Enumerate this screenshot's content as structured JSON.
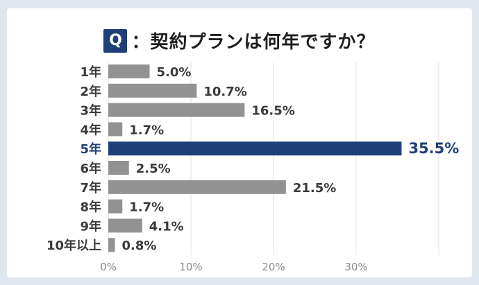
{
  "title": {
    "badge": "Q",
    "text": "：契約プランは何年ですか？"
  },
  "colors": {
    "bar": "#929292",
    "highlight": "#1f3f78",
    "label": "#3a3a3a",
    "highlight_label": "#1f3f78",
    "grid": "#e2e2e2",
    "tick": "#8a8a8a"
  },
  "chart_data": {
    "type": "bar",
    "orientation": "horizontal",
    "categories": [
      "1年",
      "2年",
      "3年",
      "4年",
      "5年",
      "6年",
      "7年",
      "8年",
      "9年",
      "10年以上"
    ],
    "values": [
      5.0,
      10.7,
      16.5,
      1.7,
      35.5,
      2.5,
      21.5,
      1.7,
      4.1,
      0.8
    ],
    "value_labels": [
      "5.0%",
      "10.7%",
      "16.5%",
      "1.7%",
      "35.5%",
      "2.5%",
      "21.5%",
      "1.7%",
      "4.1%",
      "0.8%"
    ],
    "highlight_index": 4,
    "xlim": [
      0,
      40
    ],
    "xticks": [
      0,
      10,
      20,
      30,
      40
    ],
    "xtick_labels": [
      "0%",
      "10%",
      "20%",
      "30%",
      ""
    ],
    "grid": true,
    "legend": "none"
  }
}
